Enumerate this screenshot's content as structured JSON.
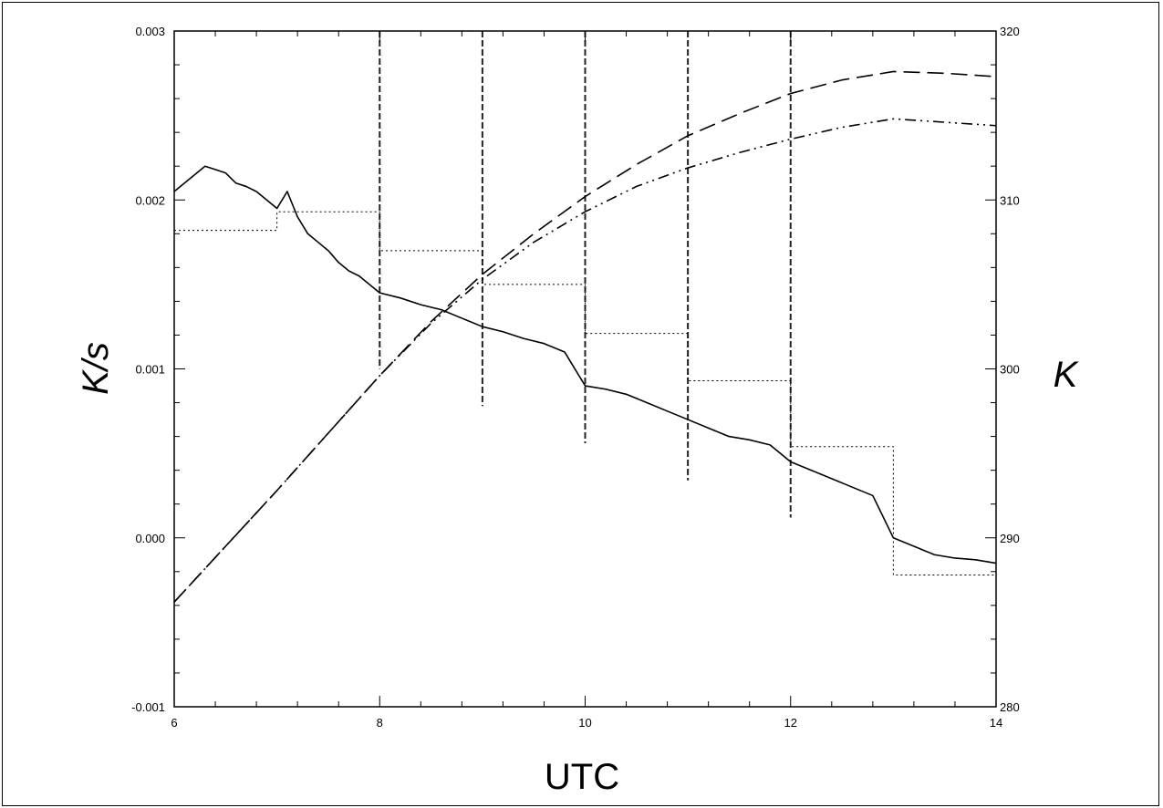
{
  "chart_data": {
    "type": "line",
    "title": "",
    "xlabel": "UTC",
    "ylabel": "K/s",
    "y2label": "K",
    "xlim": [
      6,
      14
    ],
    "ylim": [
      -0.001,
      0.003
    ],
    "y2lim": [
      280,
      320
    ],
    "x_ticks": [
      "6",
      "8",
      "10",
      "12",
      "14"
    ],
    "y_ticks": [
      "-0.001",
      "0.000",
      "0.001",
      "0.002",
      "0.003"
    ],
    "y2_ticks": [
      "280",
      "290",
      "300",
      "310",
      "320"
    ],
    "grid": false,
    "legend": "none",
    "series": [
      {
        "style": "solid",
        "axis": "left",
        "x": [
          6.0,
          6.1,
          6.2,
          6.3,
          6.4,
          6.5,
          6.6,
          6.7,
          6.8,
          6.9,
          7.0,
          7.1,
          7.2,
          7.3,
          7.4,
          7.5,
          7.6,
          7.7,
          7.8,
          7.9,
          8.0,
          8.2,
          8.4,
          8.6,
          8.8,
          9.0,
          9.2,
          9.4,
          9.6,
          9.8,
          10.0,
          10.2,
          10.4,
          10.6,
          10.8,
          11.0,
          11.2,
          11.4,
          11.6,
          11.8,
          12.0,
          12.2,
          12.4,
          12.6,
          12.8,
          13.0,
          13.2,
          13.4,
          13.6,
          13.8,
          14.0
        ],
        "y": [
          0.00205,
          0.0021,
          0.00215,
          0.0022,
          0.00218,
          0.00216,
          0.0021,
          0.00208,
          0.00205,
          0.002,
          0.00195,
          0.00205,
          0.0019,
          0.0018,
          0.00175,
          0.0017,
          0.00163,
          0.00158,
          0.00155,
          0.0015,
          0.00145,
          0.00142,
          0.00138,
          0.00135,
          0.0013,
          0.00125,
          0.00122,
          0.00118,
          0.00115,
          0.0011,
          0.0009,
          0.00088,
          0.00085,
          0.0008,
          0.00075,
          0.0007,
          0.00065,
          0.0006,
          0.00058,
          0.00055,
          0.00045,
          0.0004,
          0.00035,
          0.0003,
          0.00025,
          0.0,
          -5e-05,
          -0.0001,
          -0.00012,
          -0.00013,
          -0.00015
        ]
      },
      {
        "style": "dotted",
        "axis": "left",
        "x": [
          6.0,
          7.0,
          7.0,
          8.0,
          8.0,
          9.0,
          9.0,
          10.0,
          10.0,
          11.0,
          11.0,
          12.0,
          12.0,
          13.0,
          13.0,
          14.0
        ],
        "y": [
          0.00182,
          0.00182,
          0.00193,
          0.00193,
          0.0017,
          0.0017,
          0.0015,
          0.0015,
          0.00121,
          0.00121,
          0.00093,
          0.00093,
          0.00054,
          0.00054,
          -0.00022,
          -0.00022
        ]
      },
      {
        "style": "dashed",
        "axis": "right",
        "x": [
          6.0,
          6.5,
          7.0,
          7.5,
          8.0,
          8.5,
          9.0,
          9.5,
          10.0,
          10.5,
          11.0,
          11.5,
          12.0,
          12.5,
          13.0,
          13.5,
          14.0
        ],
        "y": [
          286.2,
          289.5,
          292.8,
          296.2,
          299.6,
          302.8,
          305.6,
          308.0,
          310.2,
          312.1,
          313.8,
          315.1,
          316.3,
          317.1,
          317.6,
          317.5,
          317.3
        ]
      },
      {
        "style": "dash-dot-dot",
        "axis": "right",
        "x": [
          6.0,
          6.5,
          7.0,
          7.5,
          8.0,
          8.5,
          9.0,
          9.5,
          10.0,
          10.5,
          11.0,
          11.5,
          12.0,
          12.5,
          13.0,
          13.5,
          14.0
        ],
        "y": [
          286.2,
          289.5,
          292.8,
          296.2,
          299.6,
          302.7,
          305.3,
          307.5,
          309.3,
          310.8,
          311.9,
          312.8,
          313.6,
          314.3,
          314.8,
          314.6,
          314.4
        ]
      }
    ],
    "vertical_dashed_markers": [
      8,
      9,
      10,
      11,
      12
    ]
  }
}
